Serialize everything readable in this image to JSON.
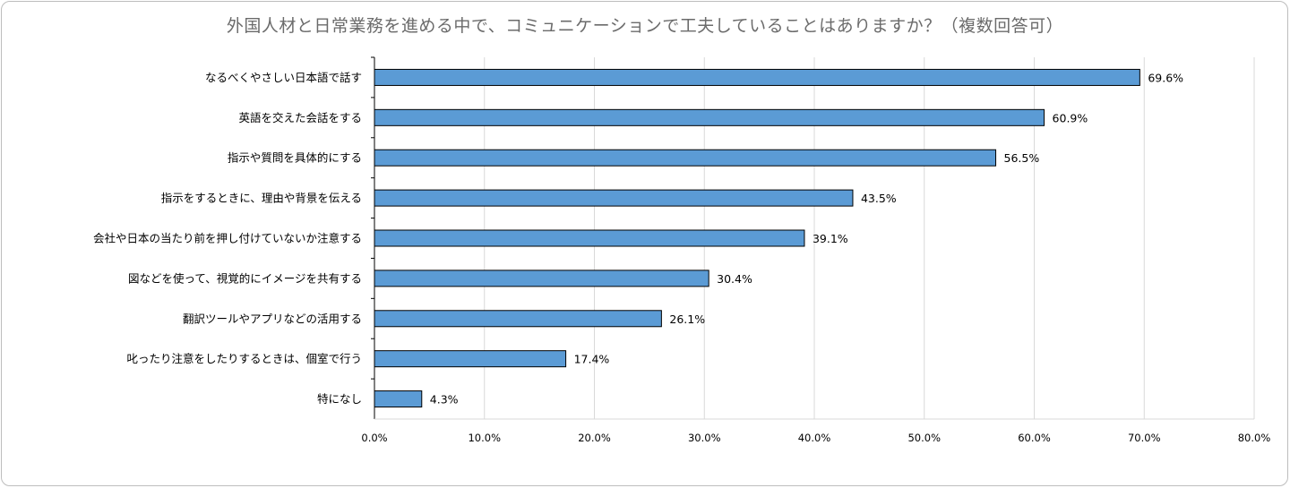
{
  "chart_data": {
    "type": "bar",
    "orientation": "horizontal",
    "title": "外国人材と日常業務を進める中で、コミュニケーションで工夫していることはありますか？（複数回答可）",
    "xlabel": "",
    "ylabel": "",
    "xlim": [
      0,
      80
    ],
    "x_ticks": [
      "0.0%",
      "10.0%",
      "20.0%",
      "30.0%",
      "40.0%",
      "50.0%",
      "60.0%",
      "70.0%",
      "80.0%"
    ],
    "x_tick_values": [
      0,
      10,
      20,
      30,
      40,
      50,
      60,
      70,
      80
    ],
    "grid": true,
    "categories": [
      "なるべくやさしい日本語で話す",
      "英語を交えた会話をする",
      "指示や質問を具体的にする",
      "指示をするときに、理由や背景を伝える",
      "会社や日本の当たり前を押し付けていないか注意する",
      "図などを使って、視覚的にイメージを共有する",
      "翻訳ツールやアプリなどの活用する",
      "叱ったり注意をしたりするときは、個室で行う",
      "特になし"
    ],
    "values": [
      69.6,
      60.9,
      56.5,
      43.5,
      39.1,
      30.4,
      26.1,
      17.4,
      4.3
    ],
    "value_labels": [
      "69.6%",
      "60.9%",
      "56.5%",
      "43.5%",
      "39.1%",
      "30.4%",
      "26.1%",
      "17.4%",
      "4.3%"
    ],
    "bar_color": "#5b9bd5",
    "bar_border": "#000000",
    "grid_color": "#d9d9d9"
  }
}
